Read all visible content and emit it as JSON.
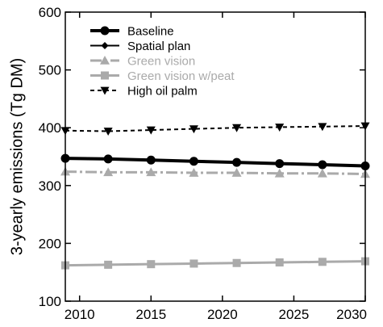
{
  "chart_data": {
    "type": "line",
    "title": "",
    "xlabel": "",
    "ylabel": "3-yearly emissions (Tg DM)",
    "xlim": [
      2009,
      2030
    ],
    "ylim": [
      100,
      600
    ],
    "x_ticks": [
      2010,
      2015,
      2020,
      2025,
      2030
    ],
    "y_ticks": [
      100,
      200,
      300,
      400,
      500,
      600
    ],
    "grid": false,
    "legend_position": "top-left",
    "x": [
      2009,
      2012,
      2015,
      2018,
      2021,
      2024,
      2027,
      2030
    ],
    "series": [
      {
        "name": "Baseline",
        "values": [
          347,
          346,
          344,
          342,
          340,
          338,
          336,
          334
        ],
        "color": "#000000",
        "line_style": "solid",
        "marker": "circle",
        "line_width": 4,
        "draw_line": true
      },
      {
        "name": "Spatial plan",
        "values": [
          347,
          346,
          344,
          342,
          340,
          338,
          336,
          334
        ],
        "color": "#000000",
        "line_style": "solid",
        "marker": "diamond",
        "line_width": 2,
        "draw_line": false
      },
      {
        "name": "Green vision",
        "values": [
          324,
          323,
          323,
          322,
          322,
          321,
          321,
          320
        ],
        "color": "#aaaaaa",
        "line_style": "dashdot",
        "marker": "triangle-up",
        "line_width": 3,
        "draw_line": true
      },
      {
        "name": "Green vision w/peat",
        "values": [
          162,
          163,
          164,
          165,
          166,
          167,
          168,
          169
        ],
        "color": "#aaaaaa",
        "line_style": "solid",
        "marker": "square",
        "line_width": 3,
        "draw_line": true
      },
      {
        "name": "High oil palm",
        "values": [
          395,
          394,
          396,
          398,
          400,
          401,
          402,
          403
        ],
        "color": "#000000",
        "line_style": "dashed",
        "marker": "triangle-down",
        "line_width": 2,
        "draw_line": true
      }
    ]
  }
}
